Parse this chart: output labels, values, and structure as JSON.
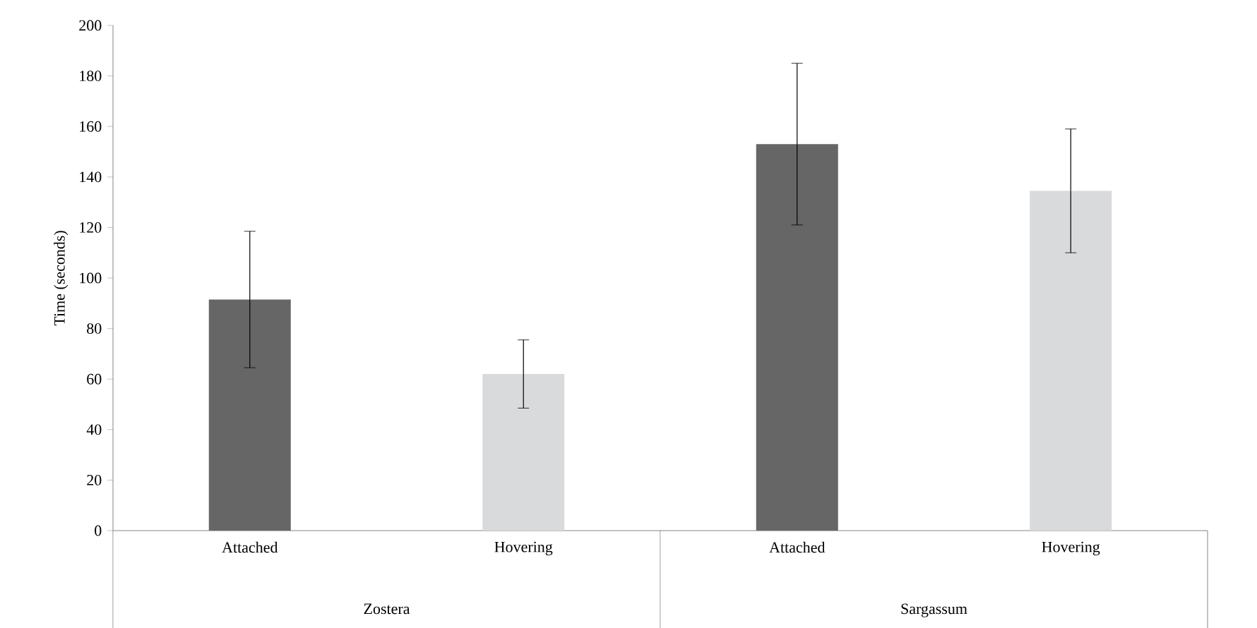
{
  "chart_data": {
    "type": "bar",
    "ylabel": "Time (seconds)",
    "categories": [
      "Attached",
      "Hovering",
      "Attached",
      "Hovering"
    ],
    "values": [
      91.5,
      62,
      153,
      134.5
    ],
    "errors": [
      27,
      13.5,
      32,
      24.5
    ],
    "colors": [
      "#666666",
      "#d9dadb",
      "#666666",
      "#d9dadb"
    ],
    "ylim": [
      0,
      200
    ],
    "yticks": [
      0,
      20,
      40,
      60,
      80,
      100,
      120,
      140,
      160,
      180,
      200
    ],
    "annotations": [
      "Zostera",
      "Sargassum"
    ],
    "grid": false
  }
}
